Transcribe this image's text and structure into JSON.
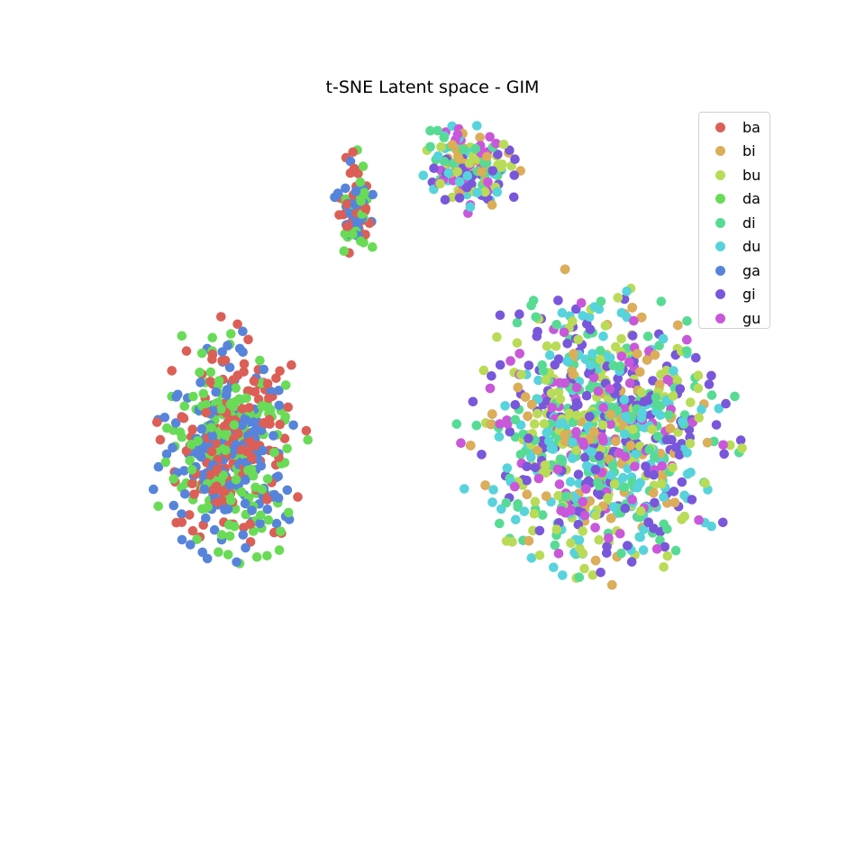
{
  "chart_data": {
    "type": "scatter",
    "title": "t-SNE Latent space - GIM",
    "xlabel": "",
    "ylabel": "",
    "axes_visible": false,
    "grid": false,
    "legend_position": "top-right",
    "xlim": [
      -40,
      40
    ],
    "ylim": [
      -40,
      40
    ],
    "points_per_class_approx": 200,
    "classes": [
      {
        "name": "ba",
        "color": "#db5f57"
      },
      {
        "name": "bi",
        "color": "#dbae57"
      },
      {
        "name": "bu",
        "color": "#b9db57"
      },
      {
        "name": "da",
        "color": "#69db57"
      },
      {
        "name": "di",
        "color": "#57db94"
      },
      {
        "name": "du",
        "color": "#57d3db"
      },
      {
        "name": "ga",
        "color": "#5784db"
      },
      {
        "name": "gi",
        "color": "#7957db"
      },
      {
        "name": "gu",
        "color": "#c957db"
      }
    ],
    "clusters": [
      {
        "name": "upper-left",
        "center": [
          -10.5,
          28.5
        ],
        "spread": [
          3.0,
          9.0
        ],
        "classes": [
          "ba",
          "da",
          "ga"
        ]
      },
      {
        "name": "left",
        "center": [
          -25.5,
          -1.5
        ],
        "spread": [
          11.0,
          20.0
        ],
        "classes": [
          "ba",
          "da",
          "ga"
        ]
      },
      {
        "name": "upper-middle",
        "center": [
          3.0,
          33.5
        ],
        "spread": [
          7.5,
          8.0
        ],
        "classes": [
          "bi",
          "bu",
          "di",
          "du",
          "gi",
          "gu"
        ]
      },
      {
        "name": "right",
        "center": [
          19.0,
          0.0
        ],
        "spread": [
          20.0,
          25.0
        ],
        "classes": [
          "bi",
          "bu",
          "di",
          "du",
          "gi",
          "gu"
        ]
      }
    ]
  }
}
